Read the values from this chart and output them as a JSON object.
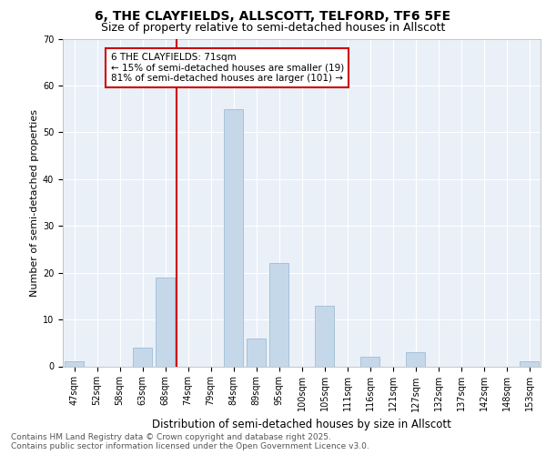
{
  "title1": "6, THE CLAYFIELDS, ALLSCOTT, TELFORD, TF6 5FE",
  "title2": "Size of property relative to semi-detached houses in Allscott",
  "xlabel": "Distribution of semi-detached houses by size in Allscott",
  "ylabel": "Number of semi-detached properties",
  "categories": [
    "47sqm",
    "52sqm",
    "58sqm",
    "63sqm",
    "68sqm",
    "74sqm",
    "79sqm",
    "84sqm",
    "89sqm",
    "95sqm",
    "100sqm",
    "105sqm",
    "111sqm",
    "116sqm",
    "121sqm",
    "127sqm",
    "132sqm",
    "137sqm",
    "142sqm",
    "148sqm",
    "153sqm"
  ],
  "values": [
    1,
    0,
    0,
    4,
    19,
    0,
    0,
    55,
    6,
    22,
    0,
    13,
    0,
    2,
    0,
    3,
    0,
    0,
    0,
    0,
    1
  ],
  "bar_color": "#c5d8ea",
  "bar_edge_color": "#a0bcd4",
  "subject_sqm": 71,
  "subject_label": "6 THE CLAYFIELDS: 71sqm",
  "pct_smaller": 15,
  "pct_smaller_n": 19,
  "pct_larger": 81,
  "pct_larger_n": 101,
  "annotation_box_color": "#cc0000",
  "vline_color": "#cc0000",
  "ylim": [
    0,
    70
  ],
  "yticks": [
    0,
    10,
    20,
    30,
    40,
    50,
    60,
    70
  ],
  "plot_bg_color": "#eaf0f8",
  "grid_color": "#ffffff",
  "footer1": "Contains HM Land Registry data © Crown copyright and database right 2025.",
  "footer2": "Contains public sector information licensed under the Open Government Licence v3.0.",
  "title1_fontsize": 10,
  "title2_fontsize": 9,
  "xlabel_fontsize": 8.5,
  "ylabel_fontsize": 8,
  "tick_fontsize": 7,
  "annotation_fontsize": 7.5,
  "footer_fontsize": 6.5
}
